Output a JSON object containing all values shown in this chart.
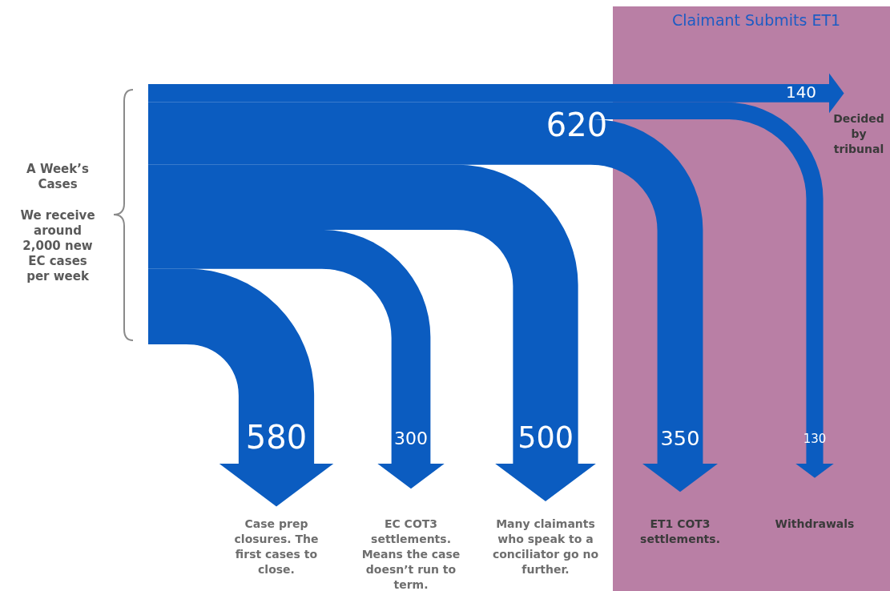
{
  "chart_data": {
    "type": "other",
    "categories": [
      "Case prep closures. The first cases to close.",
      "EC COT3 settlements. Means the case doesn’t run to term.",
      "Many claimants who speak to a conciliator go no further.",
      "ET1 COT3 settlements.",
      "Withdrawals",
      "Decided by tribunal"
    ],
    "values": [
      580,
      300,
      500,
      350,
      130,
      140
    ],
    "colors": [
      "#0b5cc0",
      "#0b5cc0",
      "#0b5cc0",
      "#0b5cc0",
      "#0b5cc0",
      "#0b5cc0"
    ],
    "data_labels": true,
    "annotations": [
      "A Week’s Cases",
      "We receive around 2,000 new EC cases per week",
      "620",
      "Claimant Submits ET1"
    ]
  }
}
